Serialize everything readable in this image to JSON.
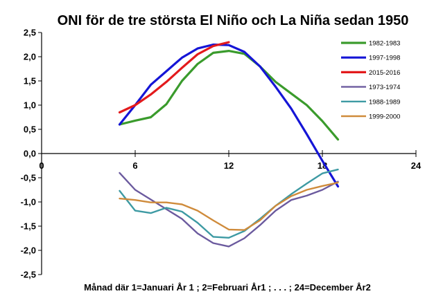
{
  "chart_data": {
    "type": "line",
    "title": "ONI för de tre största El Niño och La Niña sedan 1950",
    "xlabel": "Månad  där 1=Januari År 1 ; 2=Februari År1 ; . . . ; 24=December År2",
    "ylabel": "",
    "xlim": [
      0,
      24
    ],
    "ylim": [
      -2.5,
      2.5
    ],
    "xticks": [
      "0",
      "6",
      "12",
      "18",
      "24"
    ],
    "yticks": [
      "2,5",
      "2,0",
      "1,5",
      "1,0",
      "0,5",
      "0,0",
      "-0,5",
      "-1,0",
      "-1,5",
      "-2,0",
      "-2,5"
    ],
    "grid": false,
    "legend_position": "top-right",
    "x": [
      5,
      6,
      7,
      8,
      9,
      10,
      11,
      12,
      13,
      14,
      15,
      16,
      17,
      18,
      19
    ],
    "series": [
      {
        "name": "1982-1983",
        "color": "#3a9b2c",
        "x": [
          5,
          6,
          7,
          8,
          9,
          10,
          11,
          12,
          13,
          14,
          15,
          16,
          17,
          18,
          19
        ],
        "values": [
          0.6,
          0.68,
          0.75,
          1.02,
          1.5,
          1.85,
          2.08,
          2.12,
          2.06,
          1.8,
          1.48,
          1.24,
          1.0,
          0.67,
          0.29
        ]
      },
      {
        "name": "1997-1998",
        "color": "#1515d6",
        "x": [
          5,
          6,
          7,
          8,
          9,
          10,
          11,
          12,
          13,
          14,
          15,
          16,
          17,
          18,
          19
        ],
        "values": [
          0.6,
          1.0,
          1.42,
          1.7,
          1.98,
          2.17,
          2.25,
          2.24,
          2.1,
          1.8,
          1.38,
          0.93,
          0.4,
          -0.15,
          -0.68
        ]
      },
      {
        "name": "2015-2016",
        "color": "#e31a1c",
        "x": [
          5,
          6,
          7,
          8,
          9,
          10,
          11,
          12
        ],
        "values": [
          0.85,
          1.0,
          1.22,
          1.48,
          1.77,
          2.05,
          2.22,
          2.3
        ]
      },
      {
        "name": "1973-1974",
        "color": "#6b5a9e",
        "x": [
          5,
          6,
          7,
          8,
          9,
          10,
          11,
          12,
          13,
          14,
          15,
          16,
          17,
          18,
          19
        ],
        "values": [
          -0.4,
          -0.75,
          -0.95,
          -1.15,
          -1.35,
          -1.65,
          -1.85,
          -1.92,
          -1.75,
          -1.48,
          -1.18,
          -0.96,
          -0.87,
          -0.75,
          -0.58
        ]
      },
      {
        "name": "1988-1989",
        "color": "#3d9aa3",
        "x": [
          5,
          6,
          7,
          8,
          9,
          10,
          11,
          12,
          13,
          14,
          15,
          16,
          17,
          18,
          19
        ],
        "values": [
          -0.77,
          -1.18,
          -1.23,
          -1.12,
          -1.2,
          -1.43,
          -1.72,
          -1.74,
          -1.6,
          -1.35,
          -1.08,
          -0.84,
          -0.62,
          -0.41,
          -0.33
        ]
      },
      {
        "name": "1999-2000",
        "color": "#cf8b3b",
        "x": [
          5,
          6,
          7,
          8,
          9,
          10,
          11,
          12,
          13,
          14,
          15,
          16,
          17,
          18,
          19
        ],
        "values": [
          -0.93,
          -0.96,
          -1.01,
          -1.01,
          -1.05,
          -1.18,
          -1.38,
          -1.57,
          -1.58,
          -1.38,
          -1.08,
          -0.88,
          -0.75,
          -0.67,
          -0.6
        ]
      }
    ]
  }
}
